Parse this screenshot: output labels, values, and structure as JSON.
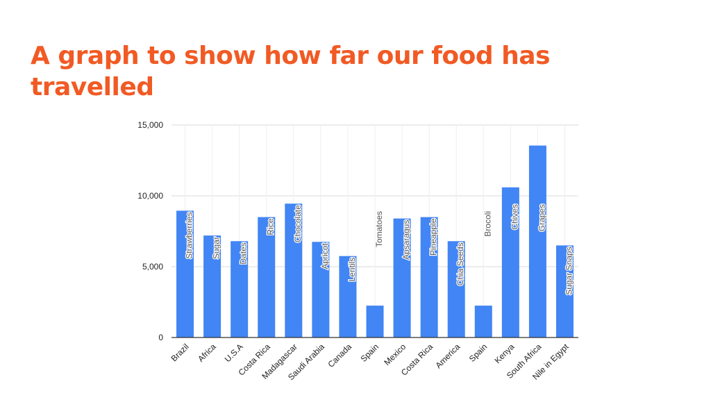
{
  "title": "A graph to show how far our food has travelled",
  "colors": {
    "title": "#f15a24",
    "bar": "#4285f4",
    "grid": "#d9d9d9",
    "axis": "#333333",
    "bar_label_text": "#555555",
    "bar_label_halo": "#ffffff"
  },
  "chart_data": {
    "type": "bar",
    "categories": [
      "Brazil",
      "Africa",
      "U.S.A",
      "Costa Rica",
      "Madagascar",
      "Saudi Arabia",
      "Canada",
      "Spain",
      "Mexico",
      "Costa Rica",
      "America",
      "Spain",
      "Kenya",
      "South Africa",
      "Nile in Egypt"
    ],
    "bar_labels": [
      "Strawberries",
      "Sugar",
      "Dates",
      "Rice",
      "Chocolate",
      "Apricot",
      "Lentils",
      "Tomatoes",
      "Apsaragus",
      "Pineapple",
      "Chia Seeds",
      "Brocoli",
      "Chives",
      "Grapes",
      "Sugar Snaps"
    ],
    "values": [
      8950,
      7200,
      6800,
      8500,
      9450,
      6750,
      5750,
      2250,
      8400,
      8500,
      6800,
      2250,
      10600,
      13550,
      6500
    ],
    "ylim": [
      0,
      15000
    ],
    "yticks": [
      0,
      5000,
      10000,
      15000
    ],
    "ytick_labels": [
      "0",
      "5,000",
      "10,000",
      "15,000"
    ],
    "grid": true,
    "legend": "none",
    "xlabel": "",
    "ylabel": ""
  }
}
